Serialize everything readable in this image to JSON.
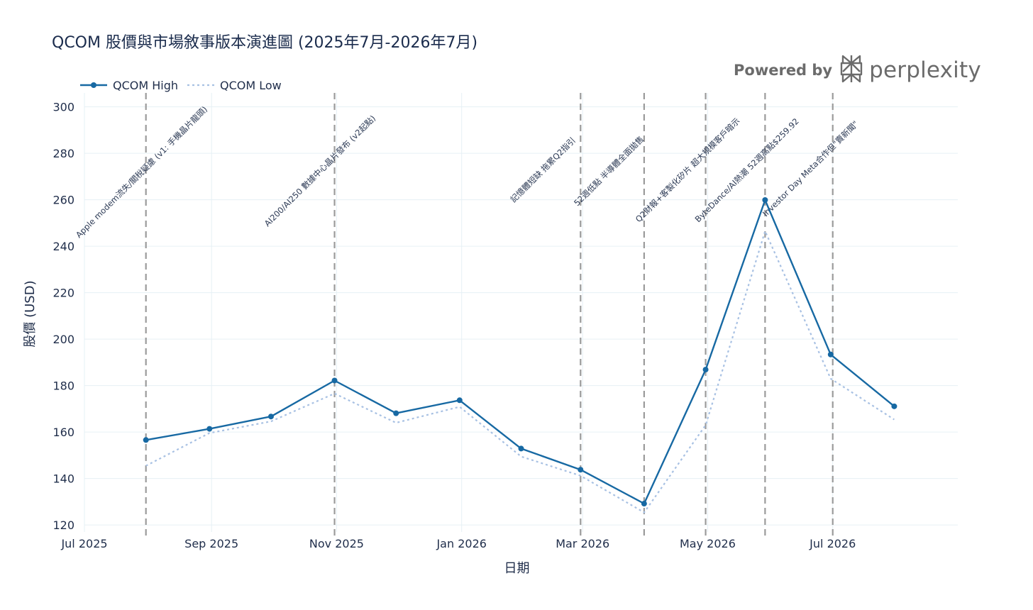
{
  "title": "QCOM 股價與市場敘事版本演進圖 (2025年7月-2026年7月)",
  "branding": {
    "powered_by": "Powered by",
    "name": "perplexity",
    "logo_icon": "perplexity-logo-icon"
  },
  "colors": {
    "high": "#1769a3",
    "low": "#a8c1e3",
    "event_line": "#9b9b9b",
    "grid": "#e6f0f5",
    "text": "#1f2d4a"
  },
  "chart_data": {
    "type": "line",
    "xlabel": "日期",
    "ylabel": "股價 (USD)",
    "xlim": [
      "2025-07-01",
      "2026-08-31"
    ],
    "ylim": [
      117,
      306
    ],
    "x_ticks": [
      {
        "date": "2025-07-01",
        "label": "Jul 2025"
      },
      {
        "date": "2025-09-01",
        "label": "Sep 2025"
      },
      {
        "date": "2025-11-01",
        "label": "Nov 2025"
      },
      {
        "date": "2026-01-01",
        "label": "Jan 2026"
      },
      {
        "date": "2026-03-01",
        "label": "Mar 2026"
      },
      {
        "date": "2026-05-01",
        "label": "May 2026"
      },
      {
        "date": "2026-07-01",
        "label": "Jul 2026"
      }
    ],
    "y_ticks": [
      120,
      140,
      160,
      180,
      200,
      220,
      240,
      260,
      280,
      300
    ],
    "grid": true,
    "legend": "top-left",
    "series": [
      {
        "name": "QCOM High",
        "style": "solid-markers",
        "points": [
          {
            "x": "2025-07-31",
            "y": 156.6
          },
          {
            "x": "2025-08-31",
            "y": 161.4
          },
          {
            "x": "2025-09-30",
            "y": 166.7
          },
          {
            "x": "2025-10-31",
            "y": 182.2
          },
          {
            "x": "2025-11-30",
            "y": 168.1
          },
          {
            "x": "2025-12-31",
            "y": 173.7
          },
          {
            "x": "2026-01-30",
            "y": 152.9
          },
          {
            "x": "2026-02-28",
            "y": 143.8
          },
          {
            "x": "2026-03-31",
            "y": 129.2
          },
          {
            "x": "2026-04-30",
            "y": 186.9
          },
          {
            "x": "2026-05-29",
            "y": 259.9
          },
          {
            "x": "2026-06-30",
            "y": 193.4
          },
          {
            "x": "2026-07-31",
            "y": 171.1
          }
        ]
      },
      {
        "name": "QCOM Low",
        "style": "dotted",
        "points": [
          {
            "x": "2025-07-31",
            "y": 145.5
          },
          {
            "x": "2025-08-31",
            "y": 159.6
          },
          {
            "x": "2025-09-30",
            "y": 164.6
          },
          {
            "x": "2025-10-31",
            "y": 176.6
          },
          {
            "x": "2025-11-30",
            "y": 164.0
          },
          {
            "x": "2025-12-31",
            "y": 170.9
          },
          {
            "x": "2026-01-30",
            "y": 149.5
          },
          {
            "x": "2026-02-28",
            "y": 141.2
          },
          {
            "x": "2026-03-31",
            "y": 125.4
          },
          {
            "x": "2026-04-30",
            "y": 163.0
          },
          {
            "x": "2026-05-29",
            "y": 246.5
          },
          {
            "x": "2026-06-30",
            "y": 183.0
          },
          {
            "x": "2026-07-31",
            "y": 165.4
          }
        ]
      }
    ],
    "events": [
      {
        "x": "2025-07-31",
        "label": "Apple modem流失/關稅疑慮 (v1: 手機晶片龍頭)"
      },
      {
        "x": "2025-10-31",
        "label": "AI200/AI250 數據中心晶片發布 (v2起點)"
      },
      {
        "x": "2026-02-28",
        "label": "記憶體短缺 拖累Q2指引"
      },
      {
        "x": "2026-03-31",
        "label": "52週低點 半導體全面拋售"
      },
      {
        "x": "2026-04-30",
        "label": "Q2財報+客製化矽片 超大規模客戶暗示"
      },
      {
        "x": "2026-05-29",
        "label": "ByteDance/AI熱潮 52週高點$259.92"
      },
      {
        "x": "2026-07-01",
        "label": "Investor Day Meta合作但\"賣新聞\""
      }
    ]
  }
}
